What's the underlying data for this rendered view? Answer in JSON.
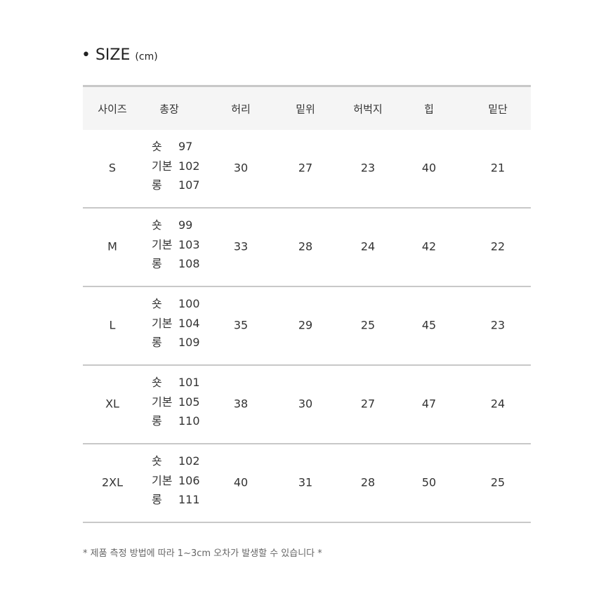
{
  "title": {
    "label": "• SIZE",
    "unit": "(cm)"
  },
  "headers": [
    "사이즈",
    "총장",
    "허리",
    "밑위",
    "허벅지",
    "힙",
    "밑단"
  ],
  "rows": [
    {
      "size": "S",
      "length": [
        {
          "k": "숏",
          "v": "97"
        },
        {
          "k": "기본",
          "v": "102"
        },
        {
          "k": "롱",
          "v": "107"
        }
      ],
      "waist": "30",
      "rise": "27",
      "thigh": "23",
      "hip": "40",
      "hem": "21"
    },
    {
      "size": "M",
      "length": [
        {
          "k": "숏",
          "v": "99"
        },
        {
          "k": "기본",
          "v": "103"
        },
        {
          "k": "롱",
          "v": "108"
        }
      ],
      "waist": "33",
      "rise": "28",
      "thigh": "24",
      "hip": "42",
      "hem": "22"
    },
    {
      "size": "L",
      "length": [
        {
          "k": "숏",
          "v": "100"
        },
        {
          "k": "기본",
          "v": "104"
        },
        {
          "k": "롱",
          "v": "109"
        }
      ],
      "waist": "35",
      "rise": "29",
      "thigh": "25",
      "hip": "45",
      "hem": "23"
    },
    {
      "size": "XL",
      "length": [
        {
          "k": "숏",
          "v": "101"
        },
        {
          "k": "기본",
          "v": "105"
        },
        {
          "k": "롱",
          "v": "110"
        }
      ],
      "waist": "38",
      "rise": "30",
      "thigh": "27",
      "hip": "47",
      "hem": "24"
    },
    {
      "size": "2XL",
      "length": [
        {
          "k": "숏",
          "v": "102"
        },
        {
          "k": "기본",
          "v": "106"
        },
        {
          "k": "롱",
          "v": "111"
        }
      ],
      "waist": "40",
      "rise": "31",
      "thigh": "28",
      "hip": "50",
      "hem": "25"
    }
  ],
  "note": "* 제품 측정 방법에 따라 1~3cm 오차가 발생할 수 있습니다 *"
}
